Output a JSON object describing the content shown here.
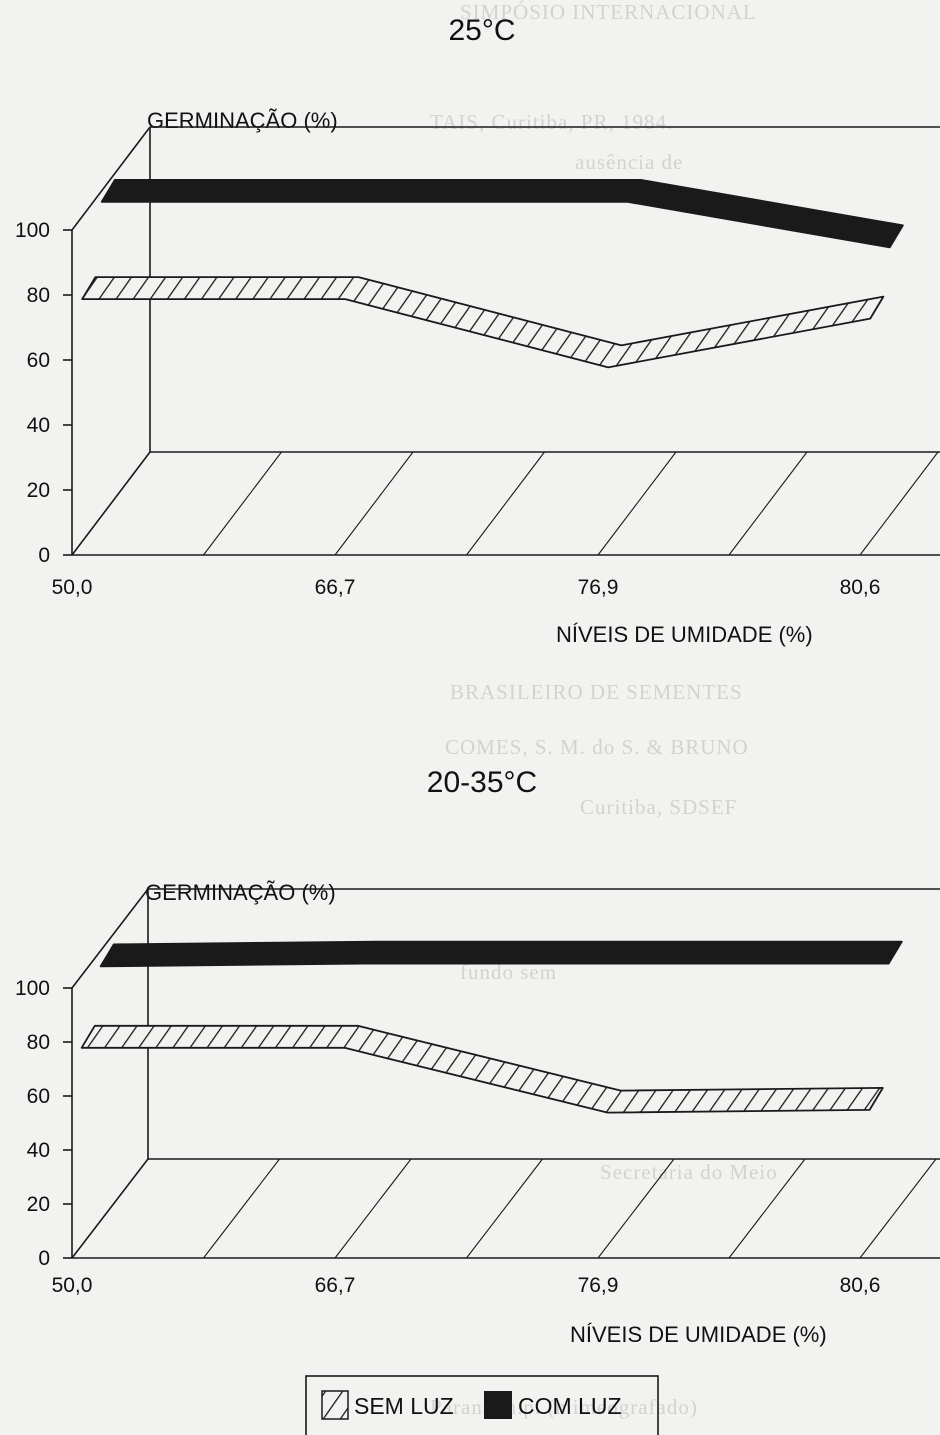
{
  "chart_data": [
    {
      "type": "area",
      "title": "25°C",
      "ylabel": "GERMINAÇÃO (%)",
      "xlabel": "NÍVEIS DE UMIDADE (%)",
      "categories": [
        "50,0",
        "66,7",
        "76,9",
        "80,6"
      ],
      "yticks": [
        "0",
        "20",
        "40",
        "60",
        "80",
        "100"
      ],
      "ylim": [
        0,
        100
      ],
      "style": "3d-ribbon",
      "series": [
        {
          "name": "SEM LUZ",
          "values": [
            76,
            76,
            55,
            70
          ],
          "fill": "hatched"
        },
        {
          "name": "COM LUZ",
          "values": [
            98,
            98,
            98,
            84
          ],
          "fill": "solid"
        }
      ]
    },
    {
      "type": "area",
      "title": "20-35°C",
      "ylabel": "GERMINAÇÃO (%)",
      "xlabel": "NÍVEIS DE UMIDADE (%)",
      "categories": [
        "50,0",
        "66,7",
        "76,9",
        "80,6"
      ],
      "yticks": [
        "0",
        "20",
        "40",
        "60",
        "80",
        "100"
      ],
      "ylim": [
        0,
        100
      ],
      "style": "3d-ribbon",
      "series": [
        {
          "name": "SEM LUZ",
          "values": [
            75,
            75,
            51,
            52
          ],
          "fill": "hatched"
        },
        {
          "name": "COM LUZ",
          "values": [
            96,
            97,
            97,
            97
          ],
          "fill": "solid"
        }
      ]
    }
  ],
  "legend": {
    "placement": "bottom-center",
    "entries": [
      {
        "label": "SEM LUZ",
        "fill": "hatched"
      },
      {
        "label": "COM LUZ",
        "fill": "solid"
      }
    ]
  },
  "colors": {
    "ink": "#1a1a1a",
    "paper": "#f2f2f0"
  }
}
